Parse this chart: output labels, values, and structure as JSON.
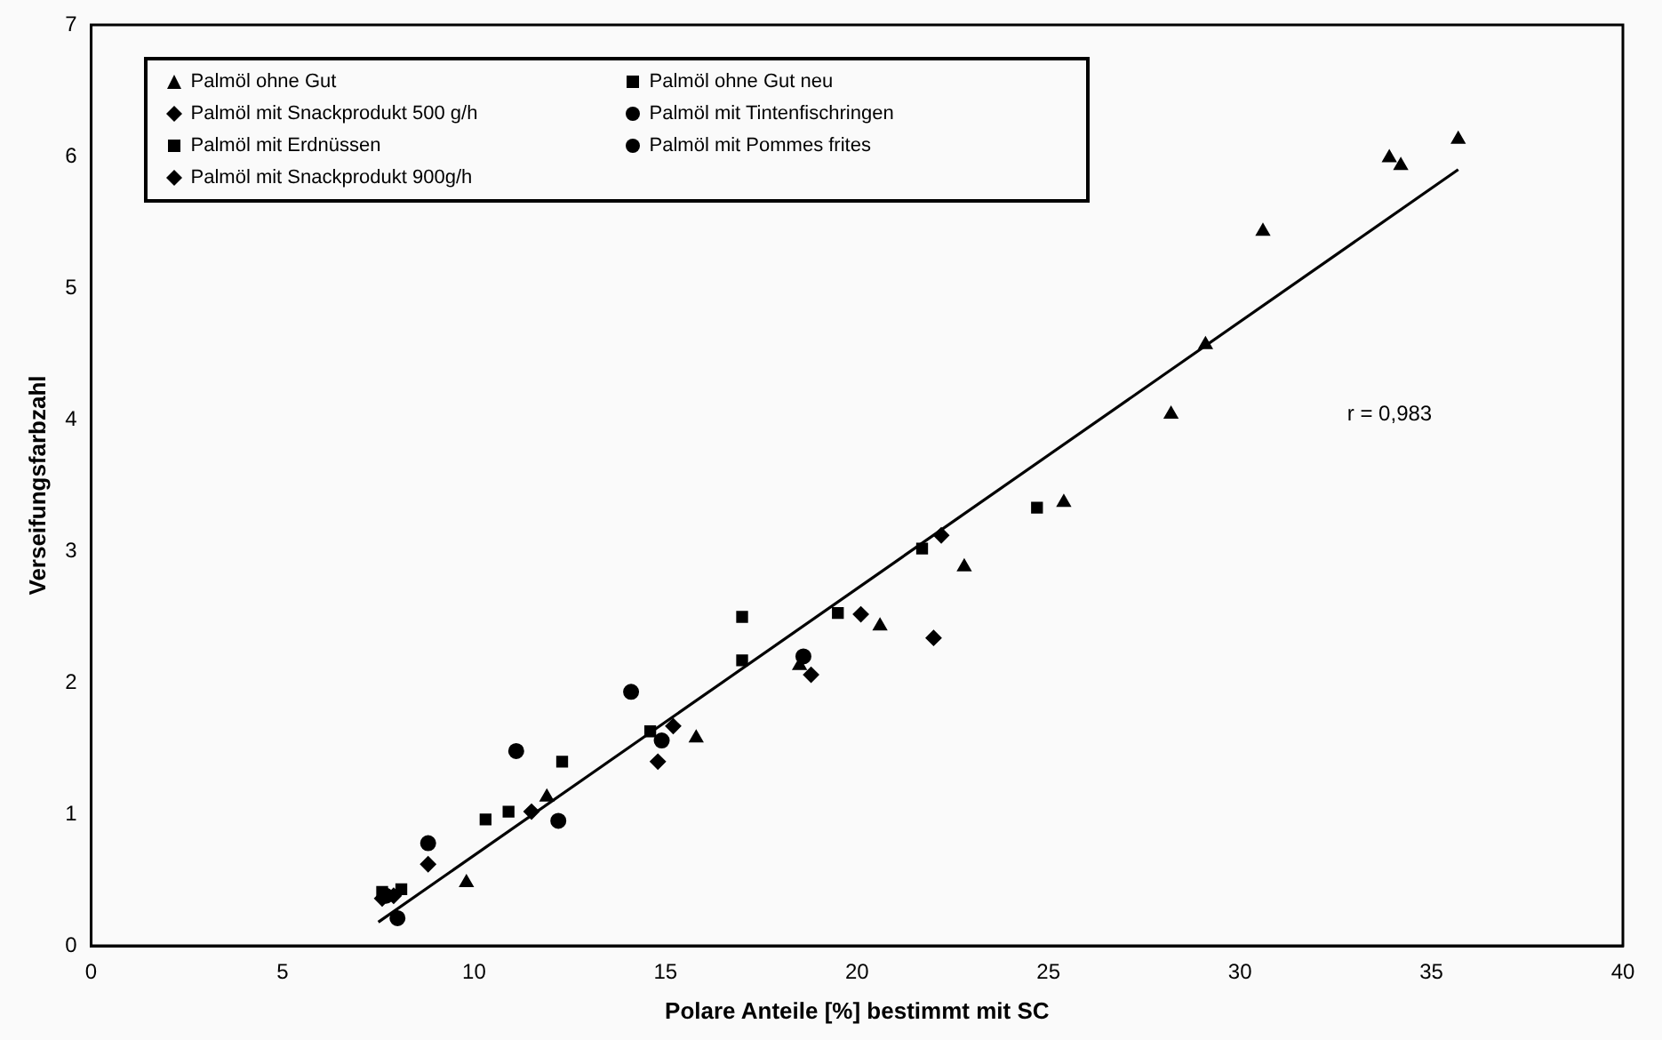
{
  "chart_data": {
    "type": "scatter",
    "xlabel": "Polare Anteile [%] bestimmt mit SC",
    "ylabel": "Verseifungsfarbzahl",
    "xlim": [
      0,
      40
    ],
    "ylim": [
      0,
      7
    ],
    "xticks": [
      0,
      5,
      10,
      15,
      20,
      25,
      30,
      35,
      40
    ],
    "yticks": [
      0,
      1,
      2,
      3,
      4,
      5,
      6,
      7
    ],
    "grid": false,
    "legend": "top left",
    "annotations": [
      "r = 0,983"
    ],
    "series": [
      {
        "name": "Palmöl ohne Gut",
        "color": "#000000",
        "marker": "triangle",
        "x": [
          9.8,
          11.9,
          15.8,
          18.5,
          20.6,
          22.8,
          25.4,
          28.2,
          29.1,
          30.6,
          33.9,
          34.2,
          35.7
        ],
        "values": [
          0.48,
          1.13,
          1.58,
          2.13,
          2.43,
          2.88,
          3.37,
          4.04,
          4.57,
          5.43,
          5.99,
          5.93,
          6.13
        ]
      },
      {
        "name": "Palmöl ohne Gut neu",
        "color": "#000000",
        "marker": "square",
        "x": [
          8.1,
          10.9,
          14.6,
          17.0,
          19.5,
          21.7,
          24.7
        ],
        "values": [
          0.43,
          1.02,
          1.63,
          2.17,
          2.53,
          3.02,
          3.33
        ]
      },
      {
        "name": "Palmöl mit Snackprodukt 500 g/h",
        "color": "#000000",
        "marker": "diamond",
        "x": [
          7.9,
          11.5,
          15.2,
          20.1,
          22.2
        ],
        "values": [
          0.38,
          1.02,
          1.67,
          2.52,
          3.12
        ]
      },
      {
        "name": "Palmöl mit Tintenfischringen",
        "color": "#000000",
        "marker": "circle",
        "x": [
          7.7,
          8.8,
          11.1,
          14.1
        ],
        "values": [
          0.38,
          0.78,
          1.48,
          1.93
        ]
      },
      {
        "name": "Palmöl mit Erdnüssen",
        "color": "#000000",
        "marker": "square",
        "x": [
          7.6,
          10.3,
          12.3,
          17.0
        ],
        "values": [
          0.41,
          0.96,
          1.4,
          2.5
        ]
      },
      {
        "name": "Palmöl mit Pommes frites",
        "color": "#000000",
        "marker": "circle",
        "x": [
          8.0,
          12.2,
          14.9,
          18.6
        ],
        "values": [
          0.21,
          0.95,
          1.56,
          2.2
        ]
      },
      {
        "name": "Palmöl mit Snackprodukt 900g/h",
        "color": "#000000",
        "marker": "diamond",
        "x": [
          7.6,
          8.8,
          14.8,
          18.8,
          22.0
        ],
        "values": [
          0.36,
          0.62,
          1.4,
          2.06,
          2.34
        ]
      },
      {
        "type": "line",
        "color": "#000000",
        "marker": "none",
        "line_style": "solid",
        "x": [
          7.5,
          35.7
        ],
        "values": [
          0.18,
          5.9
        ]
      }
    ]
  }
}
